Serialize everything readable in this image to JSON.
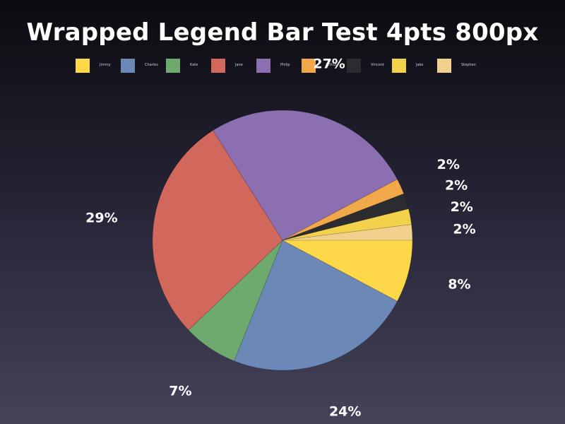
{
  "chart_data": {
    "type": "pie",
    "title": "Wrapped Legend Bar Test 4pts 800px",
    "legend_position": "top",
    "slices": [
      {
        "name": "Jimmy",
        "value": 8,
        "label": "8%",
        "color": "#ffd84a"
      },
      {
        "name": "Charles",
        "value": 24,
        "label": "24%",
        "color": "#6b88b6"
      },
      {
        "name": "Kate",
        "value": 7,
        "label": "7%",
        "color": "#6eaa6e"
      },
      {
        "name": "Jane",
        "value": 29,
        "label": "29%",
        "color": "#d2675c"
      },
      {
        "name": "Philip",
        "value": 27,
        "label": "27%",
        "color": "#8b6fb0"
      },
      {
        "name": "Arthur",
        "value": 2,
        "label": "2%",
        "color": "#f0a848"
      },
      {
        "name": "Vincent",
        "value": 2,
        "label": "2%",
        "color": "#2c2c30"
      },
      {
        "name": "Jake",
        "value": 2,
        "label": "2%",
        "color": "#f2d24a"
      },
      {
        "name": "Stephen",
        "value": 2,
        "label": "2%",
        "color": "#f0d08a"
      }
    ]
  }
}
